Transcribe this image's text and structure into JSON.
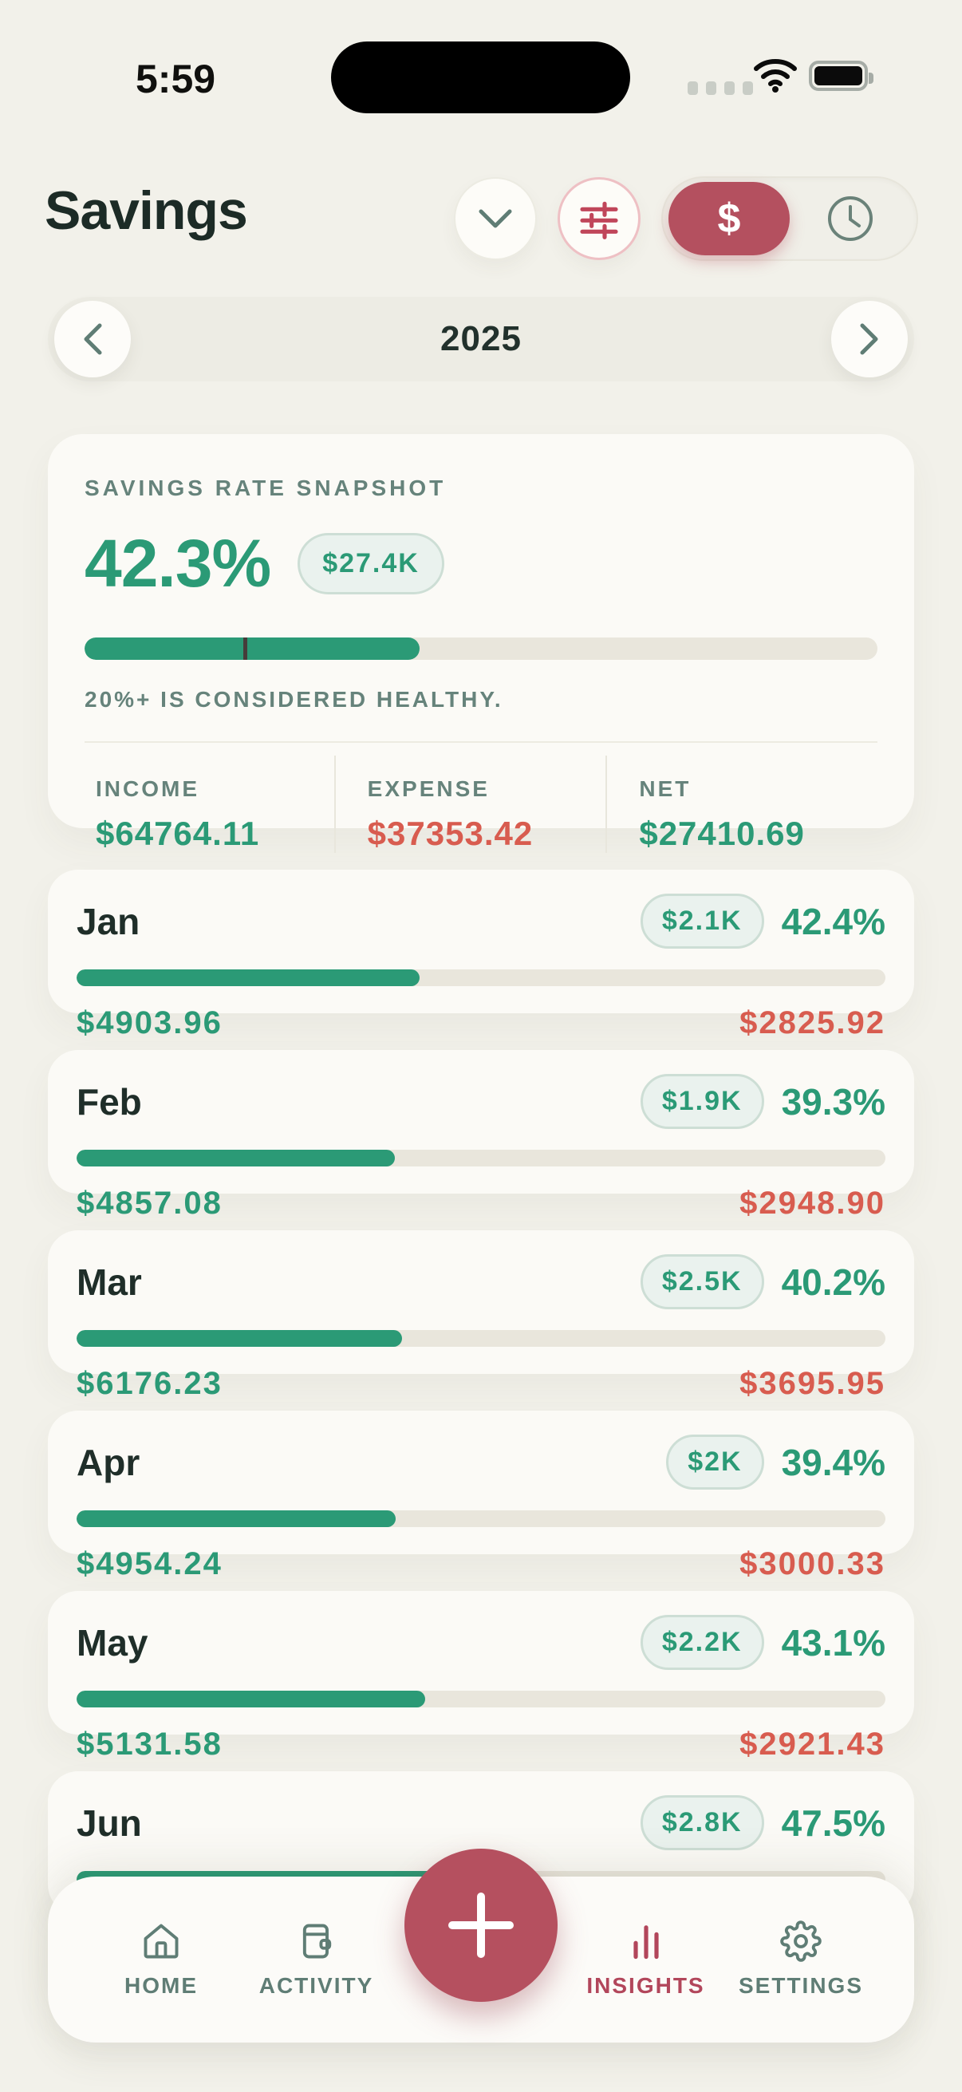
{
  "status_bar": {
    "time": "5:59",
    "icons": [
      "cellular-dots-icon",
      "wifi-icon",
      "battery-icon"
    ]
  },
  "header": {
    "title": "Savings",
    "controls": {
      "collapse_icon": "chevron-down-icon",
      "filter_icon": "sliders-icon",
      "currency_toggle_label": "$",
      "time_toggle_icon": "clock-icon"
    }
  },
  "year_nav": {
    "year": "2025",
    "prev_icon": "chevron-left-icon",
    "next_icon": "chevron-right-icon"
  },
  "snapshot": {
    "label": "SAVINGS RATE SNAPSHOT",
    "rate": "42.3%",
    "rate_pct": 42.3,
    "amount_badge": "$27.4K",
    "threshold_pct": 20,
    "healthy_note": "20%+ IS CONSIDERED HEALTHY.",
    "stats": [
      {
        "label": "INCOME",
        "value": "$64764.11",
        "tone": "green"
      },
      {
        "label": "EXPENSE",
        "value": "$37353.42",
        "tone": "red"
      },
      {
        "label": "NET",
        "value": "$27410.69",
        "tone": "green"
      }
    ]
  },
  "months": [
    {
      "name": "Jan",
      "badge": "$2.1K",
      "pct": "42.4%",
      "pct_value": 42.4,
      "income": "$4903.96",
      "expense": "$2825.92"
    },
    {
      "name": "Feb",
      "badge": "$1.9K",
      "pct": "39.3%",
      "pct_value": 39.3,
      "income": "$4857.08",
      "expense": "$2948.90"
    },
    {
      "name": "Mar",
      "badge": "$2.5K",
      "pct": "40.2%",
      "pct_value": 40.2,
      "income": "$6176.23",
      "expense": "$3695.95"
    },
    {
      "name": "Apr",
      "badge": "$2K",
      "pct": "39.4%",
      "pct_value": 39.4,
      "income": "$4954.24",
      "expense": "$3000.33"
    },
    {
      "name": "May",
      "badge": "$2.2K",
      "pct": "43.1%",
      "pct_value": 43.1,
      "income": "$5131.58",
      "expense": "$2921.43"
    },
    {
      "name": "Jun",
      "badge": "$2.8K",
      "pct": "47.5%",
      "pct_value": 47.5,
      "income": "",
      "expense": ""
    }
  ],
  "nav": {
    "items": [
      {
        "label": "HOME",
        "icon": "home-icon",
        "active": false
      },
      {
        "label": "ACTIVITY",
        "icon": "wallet-icon",
        "active": false
      },
      {
        "label": "INSIGHTS",
        "icon": "bar-chart-icon",
        "active": true
      },
      {
        "label": "SETTINGS",
        "icon": "gear-icon",
        "active": false
      }
    ],
    "fab_label": "+"
  },
  "colors": {
    "green": "#2B9A76",
    "expense_red": "#D85C4F",
    "accent_maroon": "#B4505F",
    "ink": "#1E2D28",
    "muted_teal": "#66837B",
    "background": "#F2F1EA",
    "card": "#FBFAF6",
    "track": "#E9E6DC"
  }
}
